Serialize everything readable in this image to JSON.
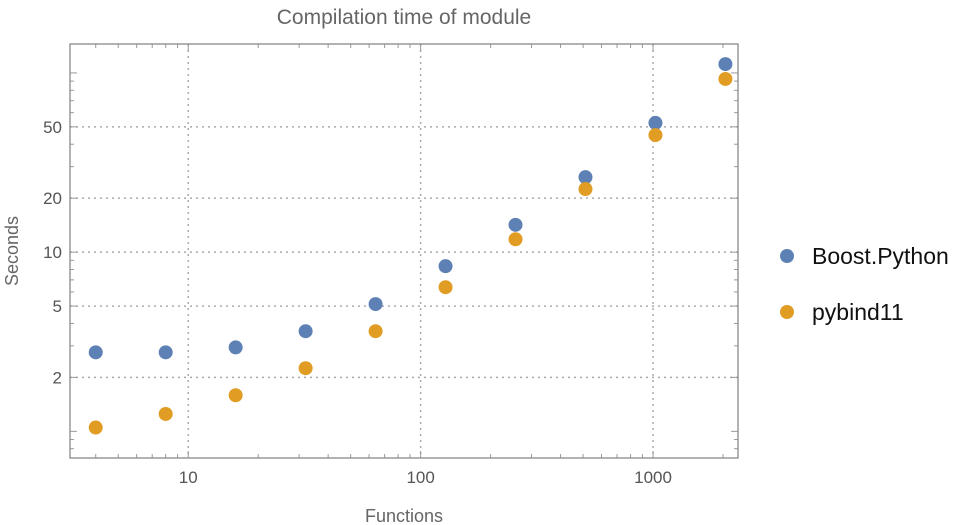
{
  "chart_data": {
    "type": "scatter",
    "title": "Compilation time of module",
    "xlabel": "Functions",
    "ylabel": "Seconds",
    "xscale": "log",
    "yscale": "log",
    "xlim": [
      3.1,
      2320
    ],
    "ylim": [
      0.71,
      145
    ],
    "xticks": [
      {
        "value": 10,
        "label": "10"
      },
      {
        "value": 100,
        "label": "100"
      },
      {
        "value": 1000,
        "label": "1000"
      }
    ],
    "yticks": [
      {
        "value": 2,
        "label": "2"
      },
      {
        "value": 5,
        "label": "5"
      },
      {
        "value": 10,
        "label": "10"
      },
      {
        "value": 20,
        "label": "20"
      },
      {
        "value": 50,
        "label": "50"
      }
    ],
    "grid": true,
    "legend_position": "right",
    "x": [
      4,
      8,
      16,
      32,
      64,
      128,
      256,
      512,
      1024,
      2048
    ],
    "series": [
      {
        "name": "Boost.Python",
        "color": "#5E81B5",
        "values": [
          2.76,
          2.76,
          2.94,
          3.62,
          5.13,
          8.35,
          14.2,
          26.2,
          52.6,
          112
        ]
      },
      {
        "name": "pybind11",
        "color": "#E19C24",
        "values": [
          1.05,
          1.25,
          1.59,
          2.25,
          3.62,
          6.37,
          11.8,
          22.5,
          45,
          92.5
        ]
      }
    ]
  }
}
